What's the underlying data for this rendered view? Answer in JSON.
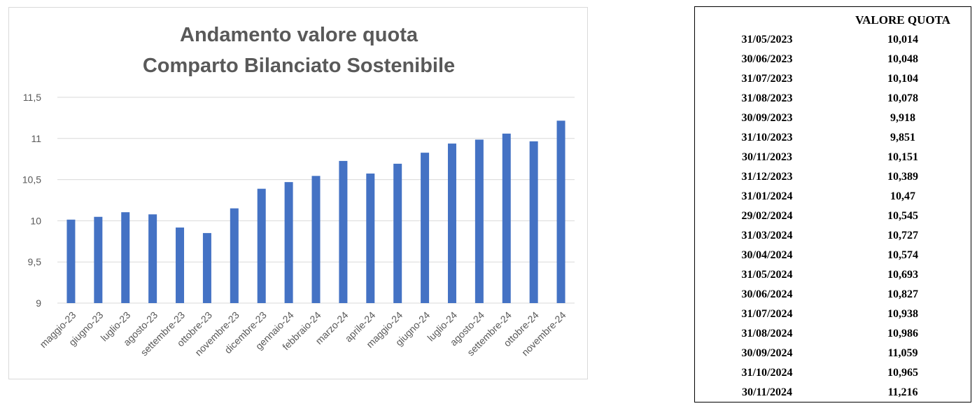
{
  "chart_data": {
    "type": "bar",
    "title_lines": [
      "Andamento valore quota",
      "Comparto Bilanciato Sostenibile"
    ],
    "categories": [
      "maggio-23",
      "giugno-23",
      "luglio-23",
      "agosto-23",
      "settembre-23",
      "ottobre-23",
      "novembre-23",
      "dicembre-23",
      "gennaio-24",
      "febbraio-24",
      "marzo-24",
      "aprile-24",
      "maggio-24",
      "giugno-24",
      "luglio-24",
      "agosto-24",
      "settembre-24",
      "ottobre-24",
      "novembre-24"
    ],
    "values": [
      10.014,
      10.048,
      10.104,
      10.078,
      9.918,
      9.851,
      10.151,
      10.389,
      10.47,
      10.545,
      10.727,
      10.574,
      10.693,
      10.827,
      10.938,
      10.986,
      11.059,
      10.965,
      11.216
    ],
    "ylim": [
      9,
      11.5
    ],
    "yticks": [
      "9",
      "9,5",
      "10",
      "10,5",
      "11",
      "11,5"
    ],
    "grid": true,
    "bar_color": "#4472c4"
  },
  "table": {
    "header": "VALORE QUOTA",
    "rows": [
      {
        "date": "31/05/2023",
        "value": "10,014"
      },
      {
        "date": "30/06/2023",
        "value": "10,048"
      },
      {
        "date": "31/07/2023",
        "value": "10,104"
      },
      {
        "date": "31/08/2023",
        "value": "10,078"
      },
      {
        "date": "30/09/2023",
        "value": "9,918"
      },
      {
        "date": "31/10/2023",
        "value": "9,851"
      },
      {
        "date": "30/11/2023",
        "value": "10,151"
      },
      {
        "date": "31/12/2023",
        "value": "10,389"
      },
      {
        "date": "31/01/2024",
        "value": "10,47"
      },
      {
        "date": "29/02/2024",
        "value": "10,545"
      },
      {
        "date": "31/03/2024",
        "value": "10,727"
      },
      {
        "date": "30/04/2024",
        "value": "10,574"
      },
      {
        "date": "31/05/2024",
        "value": "10,693"
      },
      {
        "date": "30/06/2024",
        "value": "10,827"
      },
      {
        "date": "31/07/2024",
        "value": "10,938"
      },
      {
        "date": "31/08/2024",
        "value": "10,986"
      },
      {
        "date": "30/09/2024",
        "value": "11,059"
      },
      {
        "date": "31/10/2024",
        "value": "10,965"
      },
      {
        "date": "30/11/2024",
        "value": "11,216"
      }
    ]
  }
}
